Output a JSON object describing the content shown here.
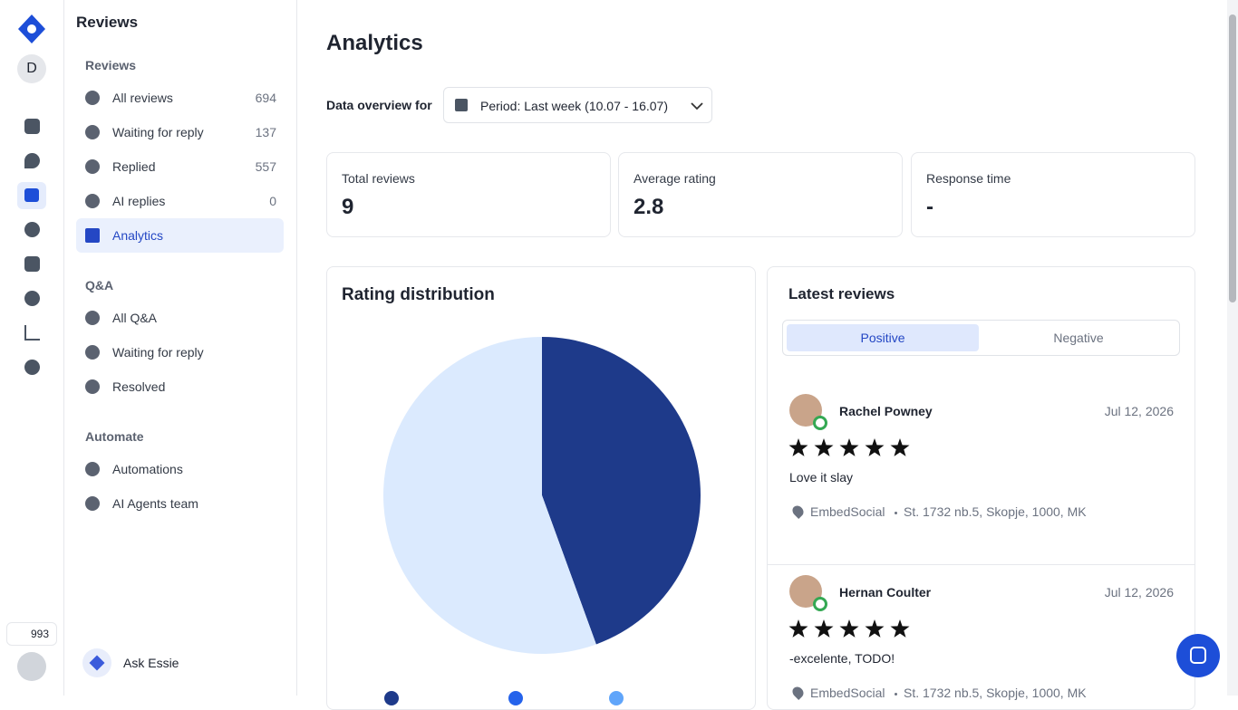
{
  "rail": {
    "avatar": "D",
    "credits": 993
  },
  "nav": {
    "title": "Reviews",
    "sections": [
      {
        "heading": "Reviews",
        "items": [
          {
            "label": "All reviews",
            "count": 694
          },
          {
            "label": "Waiting for reply",
            "count": 137
          },
          {
            "label": "Replied",
            "count": 557
          },
          {
            "label": "AI replies",
            "count": 0
          },
          {
            "label": "Analytics"
          }
        ]
      },
      {
        "heading": "Q&A",
        "items": [
          {
            "label": "All Q&A"
          },
          {
            "label": "Waiting for reply"
          },
          {
            "label": "Resolved"
          }
        ]
      },
      {
        "heading": "Automate",
        "items": [
          {
            "label": "Automations"
          },
          {
            "label": "AI Agents team"
          }
        ]
      }
    ],
    "ask": "Ask Essie"
  },
  "main": {
    "title": "Analytics",
    "filter_label": "Data overview for",
    "period": "Period: Last week (10.07 - 16.07)",
    "stats": [
      {
        "label": "Total reviews",
        "value": 9
      },
      {
        "label": "Average rating",
        "value": 2.8
      },
      {
        "label": "Response time",
        "value": "-"
      }
    ]
  },
  "chart_data": {
    "type": "pie",
    "title": "Rating distribution",
    "values": [
      4,
      5
    ],
    "colors": [
      "#1e3a8a",
      "#dbeafe"
    ]
  },
  "latest": {
    "title": "Latest reviews",
    "tabs": [
      "Positive",
      "Negative"
    ],
    "reviews": [
      {
        "name": "Rachel Powney",
        "date": "Jul 12, 2026",
        "rating": 5,
        "text": "Love it slay",
        "source": "EmbedSocial",
        "address": "St. 1732 nb.5, Skopje, 1000, MK"
      },
      {
        "name": "Hernan Coulter",
        "date": "Jul 12, 2026",
        "rating": 5,
        "text": "-excelente, TODO!",
        "source": "EmbedSocial",
        "address": "St. 1732 nb.5, Skopje, 1000, MK"
      }
    ]
  }
}
